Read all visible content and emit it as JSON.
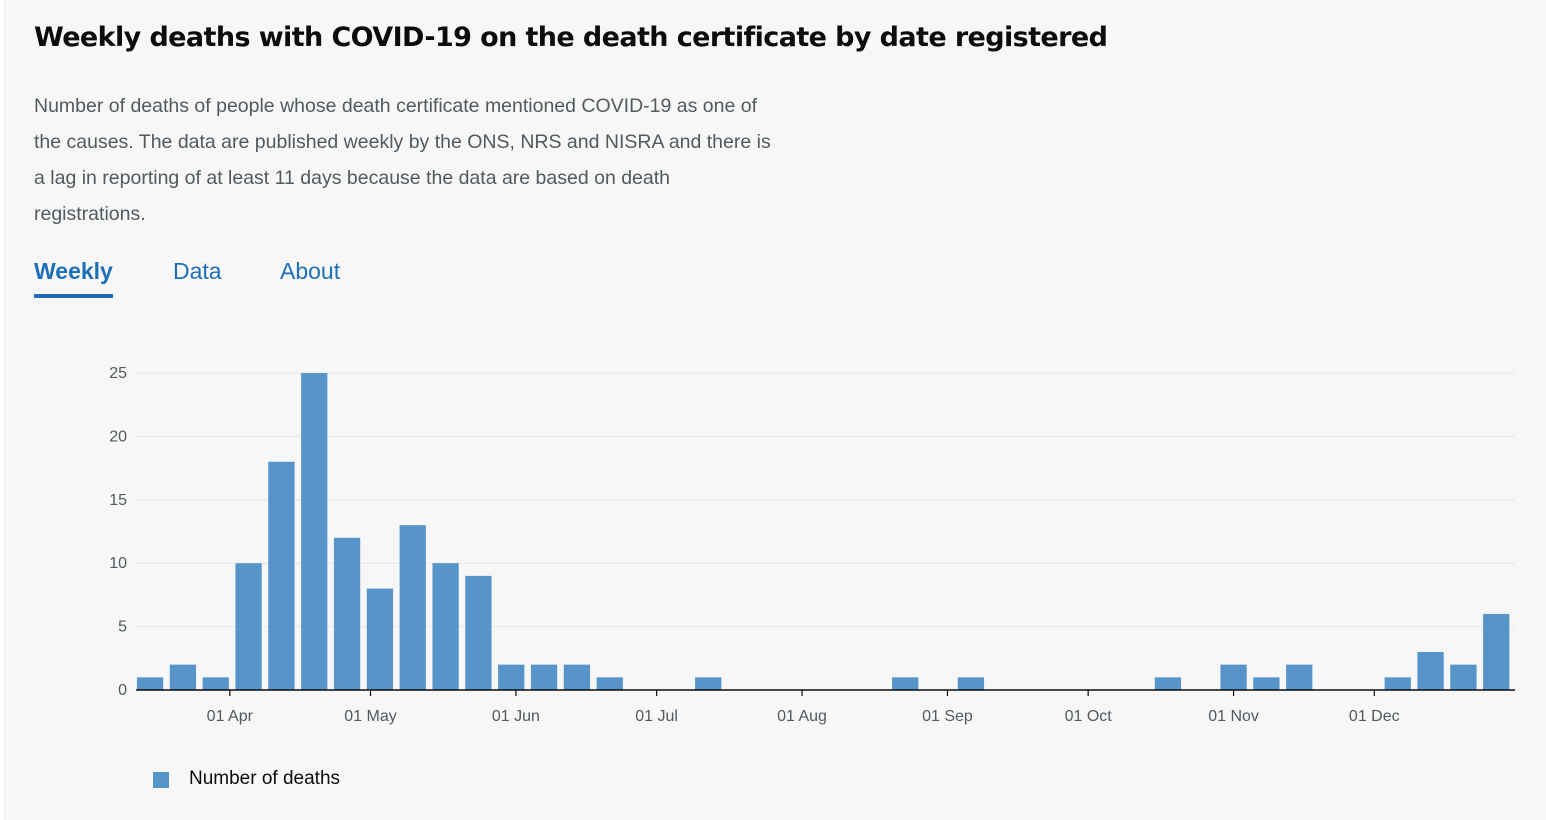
{
  "page": {
    "title": "Weekly deaths with COVID-19 on the death certificate by date registered",
    "description": "Number of deaths of people whose death certificate mentioned COVID-19 as one of the causes. The data are published weekly by the ONS, NRS and NISRA and there is a lag in reporting of at least 11 days because the data are based on death registrations."
  },
  "tabs": [
    {
      "label": "Weekly",
      "active": true
    },
    {
      "label": "Data",
      "active": false
    },
    {
      "label": "About",
      "active": false
    }
  ],
  "colors": {
    "bar": "#5694ca",
    "accent": "#1d70b8",
    "text": "#0b0c0c",
    "muted": "#505a5f"
  },
  "chart_data": {
    "type": "bar",
    "title": "",
    "xlabel": "",
    "ylabel": "",
    "ylim": [
      0,
      25
    ],
    "yticks": [
      0,
      5,
      10,
      15,
      20,
      25
    ],
    "grid": true,
    "legend_position": "bottom-left",
    "x_range": [
      "2020-03-12",
      "2020-12-31"
    ],
    "xticks": [
      {
        "date": "2020-04-01",
        "label": "01 Apr"
      },
      {
        "date": "2020-05-01",
        "label": "01 May"
      },
      {
        "date": "2020-06-01",
        "label": "01 Jun"
      },
      {
        "date": "2020-07-01",
        "label": "01 Jul"
      },
      {
        "date": "2020-08-01",
        "label": "01 Aug"
      },
      {
        "date": "2020-09-01",
        "label": "01 Sep"
      },
      {
        "date": "2020-10-01",
        "label": "01 Oct"
      },
      {
        "date": "2020-11-01",
        "label": "01 Nov"
      },
      {
        "date": "2020-12-01",
        "label": "01 Dec"
      }
    ],
    "series": [
      {
        "name": "Number of deaths",
        "x": [
          "2020-03-15",
          "2020-03-22",
          "2020-03-29",
          "2020-04-05",
          "2020-04-12",
          "2020-04-19",
          "2020-04-26",
          "2020-05-03",
          "2020-05-10",
          "2020-05-17",
          "2020-05-24",
          "2020-05-31",
          "2020-06-07",
          "2020-06-14",
          "2020-06-21",
          "2020-06-28",
          "2020-07-05",
          "2020-07-12",
          "2020-07-19",
          "2020-07-26",
          "2020-08-02",
          "2020-08-09",
          "2020-08-16",
          "2020-08-23",
          "2020-08-30",
          "2020-09-06",
          "2020-09-13",
          "2020-09-20",
          "2020-09-27",
          "2020-10-04",
          "2020-10-11",
          "2020-10-18",
          "2020-10-25",
          "2020-11-01",
          "2020-11-08",
          "2020-11-15",
          "2020-11-22",
          "2020-11-29",
          "2020-12-06",
          "2020-12-13",
          "2020-12-20",
          "2020-12-27"
        ],
        "values": [
          1,
          2,
          1,
          10,
          18,
          25,
          12,
          8,
          13,
          10,
          9,
          2,
          2,
          2,
          1,
          0,
          0,
          1,
          0,
          0,
          0,
          0,
          0,
          1,
          0,
          1,
          0,
          0,
          0,
          0,
          0,
          1,
          0,
          2,
          1,
          2,
          0,
          0,
          1,
          3,
          2,
          6
        ]
      }
    ]
  }
}
